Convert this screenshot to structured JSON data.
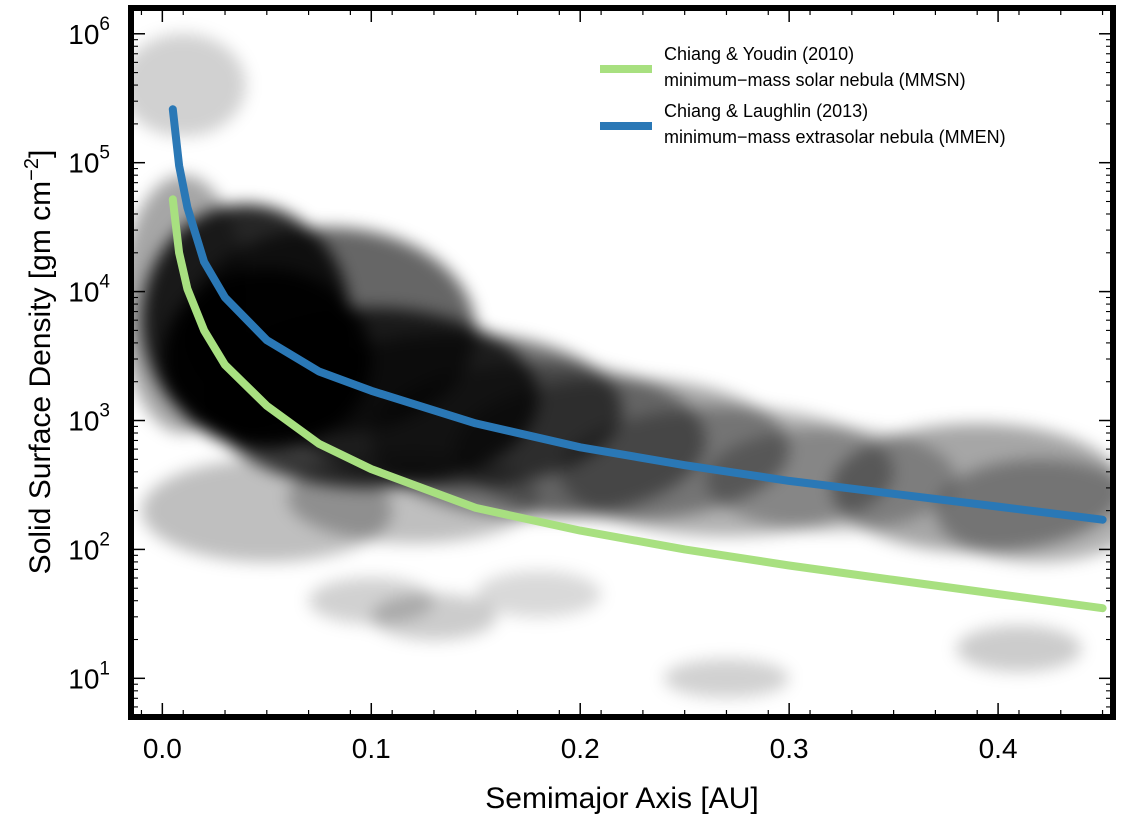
{
  "chart_data": {
    "type": "line",
    "xlabel": "Semimajor Axis  [AU]",
    "ylabel": {
      "main": "Solid Surface Density  [gm cm",
      "sup": "−2",
      "close": "]"
    },
    "xlim": [
      -0.015,
      0.455
    ],
    "ylim_log10": [
      0.7,
      6.2
    ],
    "y_scale": "log",
    "grid": false,
    "legend_placement": "top-right",
    "x_ticks": [
      {
        "value": 0.0,
        "label": "0.0"
      },
      {
        "value": 0.1,
        "label": "0.1"
      },
      {
        "value": 0.2,
        "label": "0.2"
      },
      {
        "value": 0.3,
        "label": "0.3"
      },
      {
        "value": 0.4,
        "label": "0.4"
      }
    ],
    "y_ticks": [
      {
        "exp": 1,
        "base": "10",
        "sup": "1"
      },
      {
        "exp": 2,
        "base": "10",
        "sup": "2"
      },
      {
        "exp": 3,
        "base": "10",
        "sup": "3"
      },
      {
        "exp": 4,
        "base": "10",
        "sup": "4"
      },
      {
        "exp": 5,
        "base": "10",
        "sup": "5"
      },
      {
        "exp": 6,
        "base": "10",
        "sup": "6"
      }
    ],
    "series": [
      {
        "name": "Chiang & Youdin (2010)",
        "name_line2": "minimum−mass solar nebula (MMSN)",
        "color": "#a8e080",
        "x": [
          0.005,
          0.008,
          0.012,
          0.02,
          0.03,
          0.05,
          0.075,
          0.1,
          0.15,
          0.2,
          0.25,
          0.3,
          0.35,
          0.4,
          0.45
        ],
        "y": [
          52000,
          20000,
          10500,
          5000,
          2700,
          1300,
          660,
          420,
          210,
          140,
          100,
          75,
          58,
          45,
          35
        ]
      },
      {
        "name": "Chiang & Laughlin (2013)",
        "name_line2": "minimum−mass extrasolar nebula (MMEN)",
        "color": "#2a78b6",
        "x": [
          0.005,
          0.008,
          0.012,
          0.02,
          0.03,
          0.05,
          0.075,
          0.1,
          0.15,
          0.2,
          0.25,
          0.3,
          0.35,
          0.4,
          0.45
        ],
        "y": [
          260000,
          95000,
          45000,
          17000,
          9000,
          4200,
          2400,
          1700,
          950,
          620,
          450,
          340,
          270,
          215,
          170
        ]
      }
    ],
    "density_background": {
      "colormap": "grey",
      "blobs": [
        {
          "x": 0.01,
          "y": 400000,
          "w": 0.03,
          "h": 0.4,
          "a": 0.18
        },
        {
          "x": 0.01,
          "y": 8000,
          "w": 0.03,
          "h": 1.0,
          "a": 0.35
        },
        {
          "x": 0.04,
          "y": 6000,
          "w": 0.05,
          "h": 0.9,
          "a": 0.85
        },
        {
          "x": 0.05,
          "y": 3000,
          "w": 0.05,
          "h": 0.7,
          "a": 0.95
        },
        {
          "x": 0.08,
          "y": 5000,
          "w": 0.07,
          "h": 0.8,
          "a": 0.6
        },
        {
          "x": 0.1,
          "y": 1500,
          "w": 0.08,
          "h": 0.7,
          "a": 0.75
        },
        {
          "x": 0.14,
          "y": 1200,
          "w": 0.08,
          "h": 0.6,
          "a": 0.55
        },
        {
          "x": 0.18,
          "y": 700,
          "w": 0.08,
          "h": 0.6,
          "a": 0.4
        },
        {
          "x": 0.22,
          "y": 600,
          "w": 0.08,
          "h": 0.55,
          "a": 0.35
        },
        {
          "x": 0.27,
          "y": 400,
          "w": 0.08,
          "h": 0.5,
          "a": 0.3
        },
        {
          "x": 0.32,
          "y": 350,
          "w": 0.06,
          "h": 0.4,
          "a": 0.25
        },
        {
          "x": 0.39,
          "y": 300,
          "w": 0.07,
          "h": 0.5,
          "a": 0.35
        },
        {
          "x": 0.42,
          "y": 200,
          "w": 0.05,
          "h": 0.4,
          "a": 0.3
        },
        {
          "x": 0.1,
          "y": 40,
          "w": 0.03,
          "h": 0.18,
          "a": 0.18
        },
        {
          "x": 0.13,
          "y": 30,
          "w": 0.03,
          "h": 0.18,
          "a": 0.2
        },
        {
          "x": 0.18,
          "y": 45,
          "w": 0.03,
          "h": 0.18,
          "a": 0.15
        },
        {
          "x": 0.27,
          "y": 10,
          "w": 0.03,
          "h": 0.15,
          "a": 0.18
        },
        {
          "x": 0.41,
          "y": 17,
          "w": 0.03,
          "h": 0.18,
          "a": 0.2
        },
        {
          "x": 0.05,
          "y": 200,
          "w": 0.06,
          "h": 0.4,
          "a": 0.25
        },
        {
          "x": 0.12,
          "y": 250,
          "w": 0.06,
          "h": 0.35,
          "a": 0.25
        }
      ]
    }
  }
}
